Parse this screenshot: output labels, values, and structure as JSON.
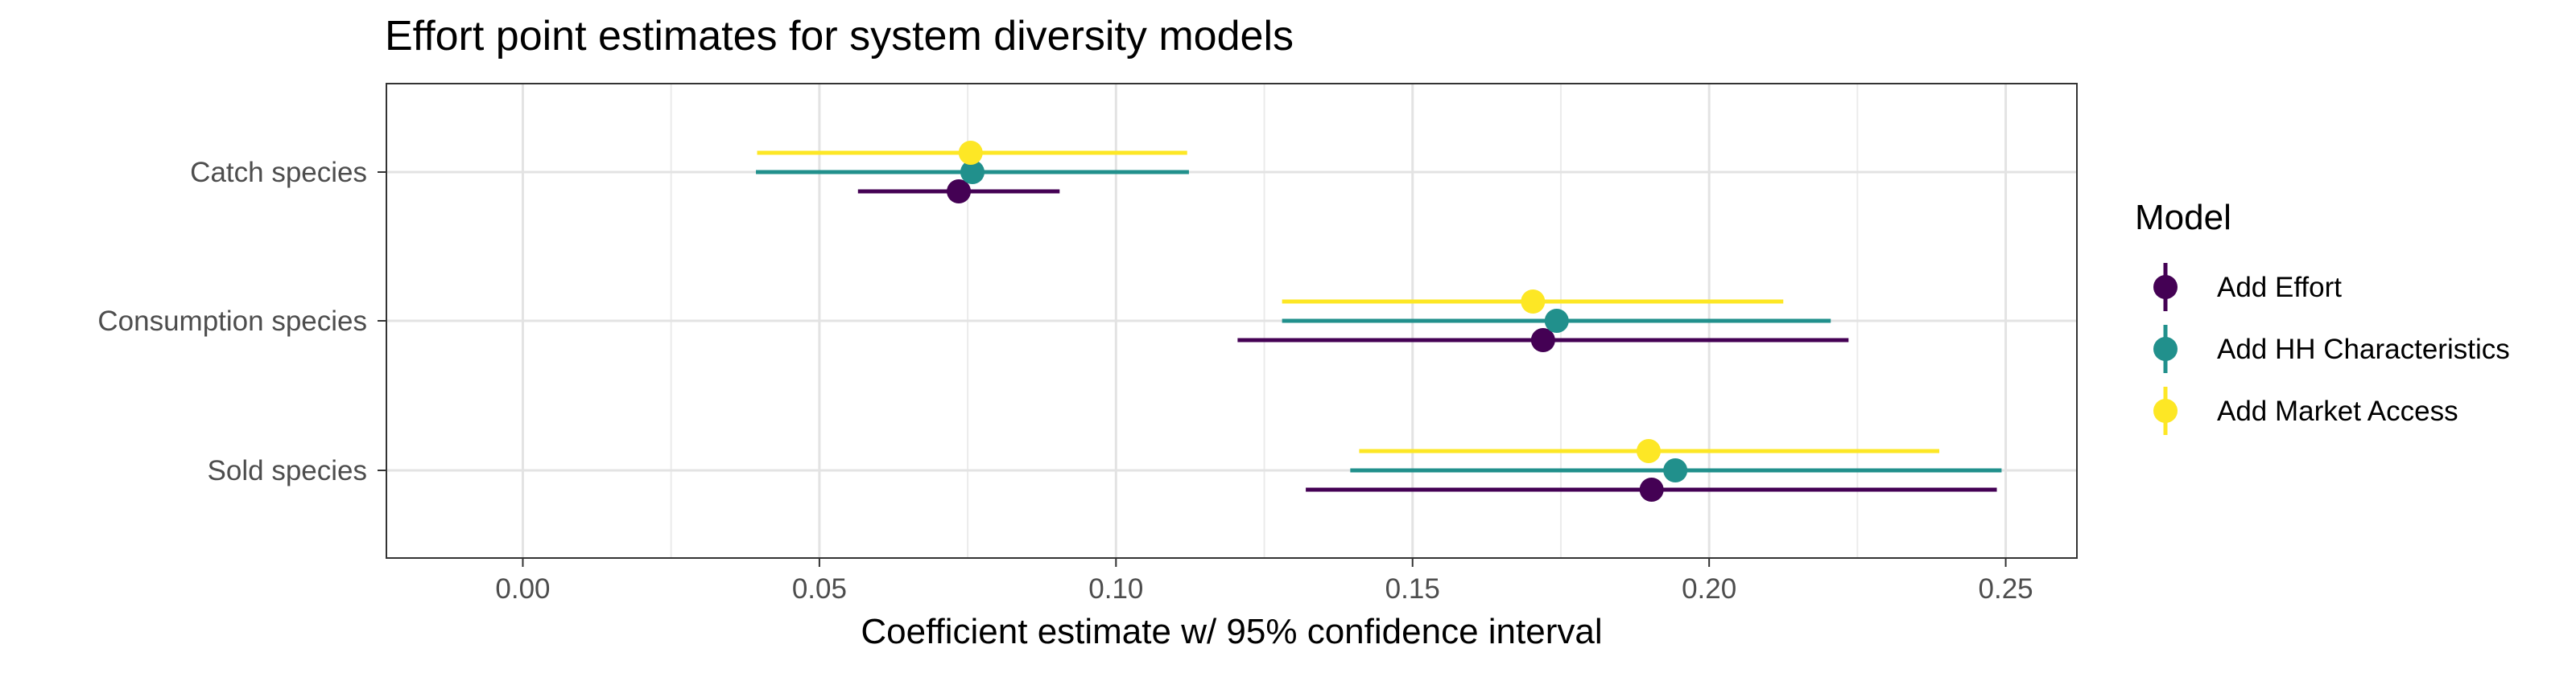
{
  "chart_data": {
    "type": "scatter",
    "subtype": "dot-and-whisker",
    "title": "Effort point estimates for system diversity models",
    "xlabel": "Coefficient estimate w/ 95% confidence interval",
    "ylabel": "",
    "xlim": [
      -0.023,
      0.262
    ],
    "x_ticks": [
      0.0,
      0.05,
      0.1,
      0.15,
      0.2,
      0.25
    ],
    "x_tick_labels": [
      "0.00",
      "0.05",
      "0.10",
      "0.15",
      "0.20",
      "0.25"
    ],
    "categories": [
      "Catch species",
      "Consumption species",
      "Sold species"
    ],
    "grid": true,
    "legend_position": "right",
    "legend": {
      "title": "Model",
      "entries": [
        "Add Effort",
        "Add HH Characteristics",
        "Add Market Access"
      ]
    },
    "series": [
      {
        "name": "Add Effort",
        "color": "#440154",
        "points": [
          {
            "category": "Catch species",
            "estimate": 0.0735,
            "low": 0.0565,
            "high": 0.0905
          },
          {
            "category": "Consumption species",
            "estimate": 0.172,
            "low": 0.1205,
            "high": 0.2235
          },
          {
            "category": "Sold species",
            "estimate": 0.1903,
            "low": 0.132,
            "high": 0.2485
          }
        ]
      },
      {
        "name": "Add HH Characteristics",
        "color": "#21908C",
        "points": [
          {
            "category": "Catch species",
            "estimate": 0.0758,
            "low": 0.0393,
            "high": 0.1123
          },
          {
            "category": "Consumption species",
            "estimate": 0.1743,
            "low": 0.128,
            "high": 0.2205
          },
          {
            "category": "Sold species",
            "estimate": 0.1943,
            "low": 0.1395,
            "high": 0.2493
          }
        ]
      },
      {
        "name": "Add Market Access",
        "color": "#FDE725",
        "points": [
          {
            "category": "Catch species",
            "estimate": 0.0755,
            "low": 0.0395,
            "high": 0.112
          },
          {
            "category": "Consumption species",
            "estimate": 0.1703,
            "low": 0.128,
            "high": 0.2125
          },
          {
            "category": "Sold species",
            "estimate": 0.1898,
            "low": 0.141,
            "high": 0.2388
          }
        ]
      }
    ]
  }
}
